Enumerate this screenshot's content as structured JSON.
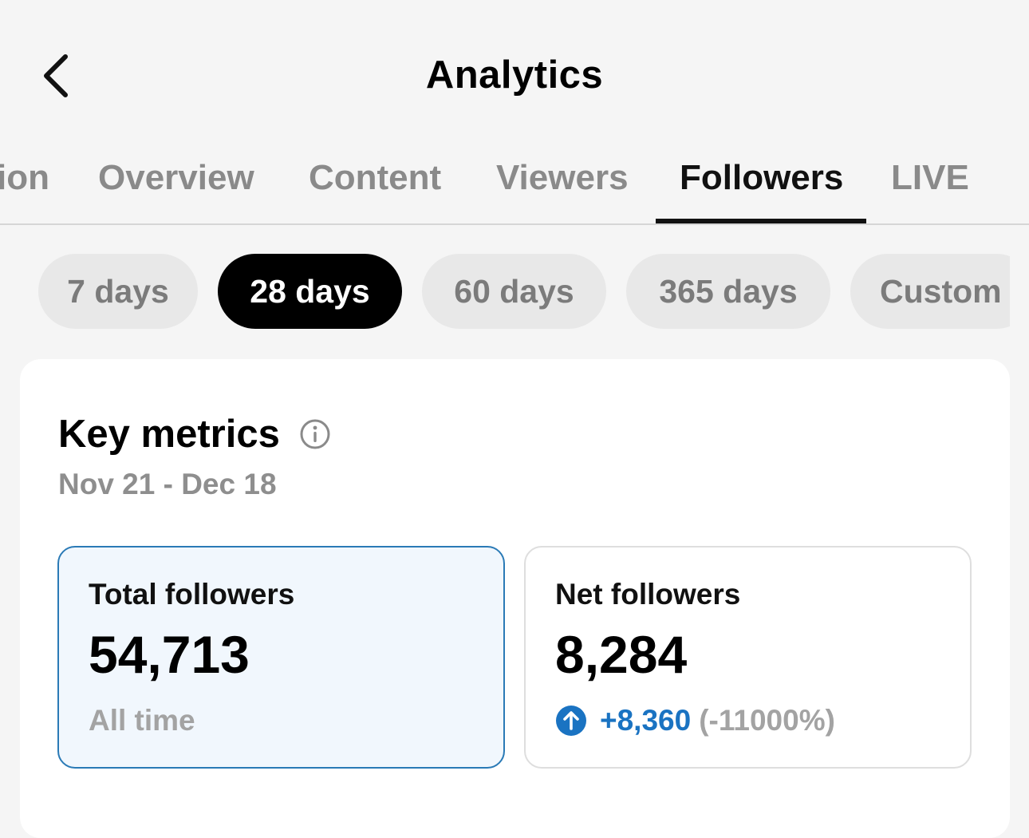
{
  "header": {
    "title": "Analytics",
    "back_icon": "chevron-left-icon"
  },
  "tabs": [
    {
      "label": "ion"
    },
    {
      "label": "Overview"
    },
    {
      "label": "Content"
    },
    {
      "label": "Viewers"
    },
    {
      "label": "Followers",
      "active": true
    },
    {
      "label": "LIVE"
    }
  ],
  "date_ranges": [
    {
      "label": "7 days"
    },
    {
      "label": "28 days",
      "active": true
    },
    {
      "label": "60 days"
    },
    {
      "label": "365 days"
    },
    {
      "label": "Custom"
    }
  ],
  "key_metrics": {
    "title": "Key metrics",
    "info_icon": "info-icon",
    "date_range": "Nov 21 - Dec 18"
  },
  "metrics": {
    "total": {
      "label": "Total followers",
      "value": "54,713",
      "subtitle": "All time"
    },
    "net": {
      "label": "Net followers",
      "value": "8,284",
      "change_icon": "arrow-up-circle-icon",
      "change_value": "+8,360",
      "change_percent": "(-11000%)"
    }
  },
  "colors": {
    "background": "#f5f5f5",
    "accent_blue": "#1a73c2",
    "selected_border": "#2a7ab6",
    "selected_fill": "#f1f7fd",
    "active_pill": "#000000"
  }
}
